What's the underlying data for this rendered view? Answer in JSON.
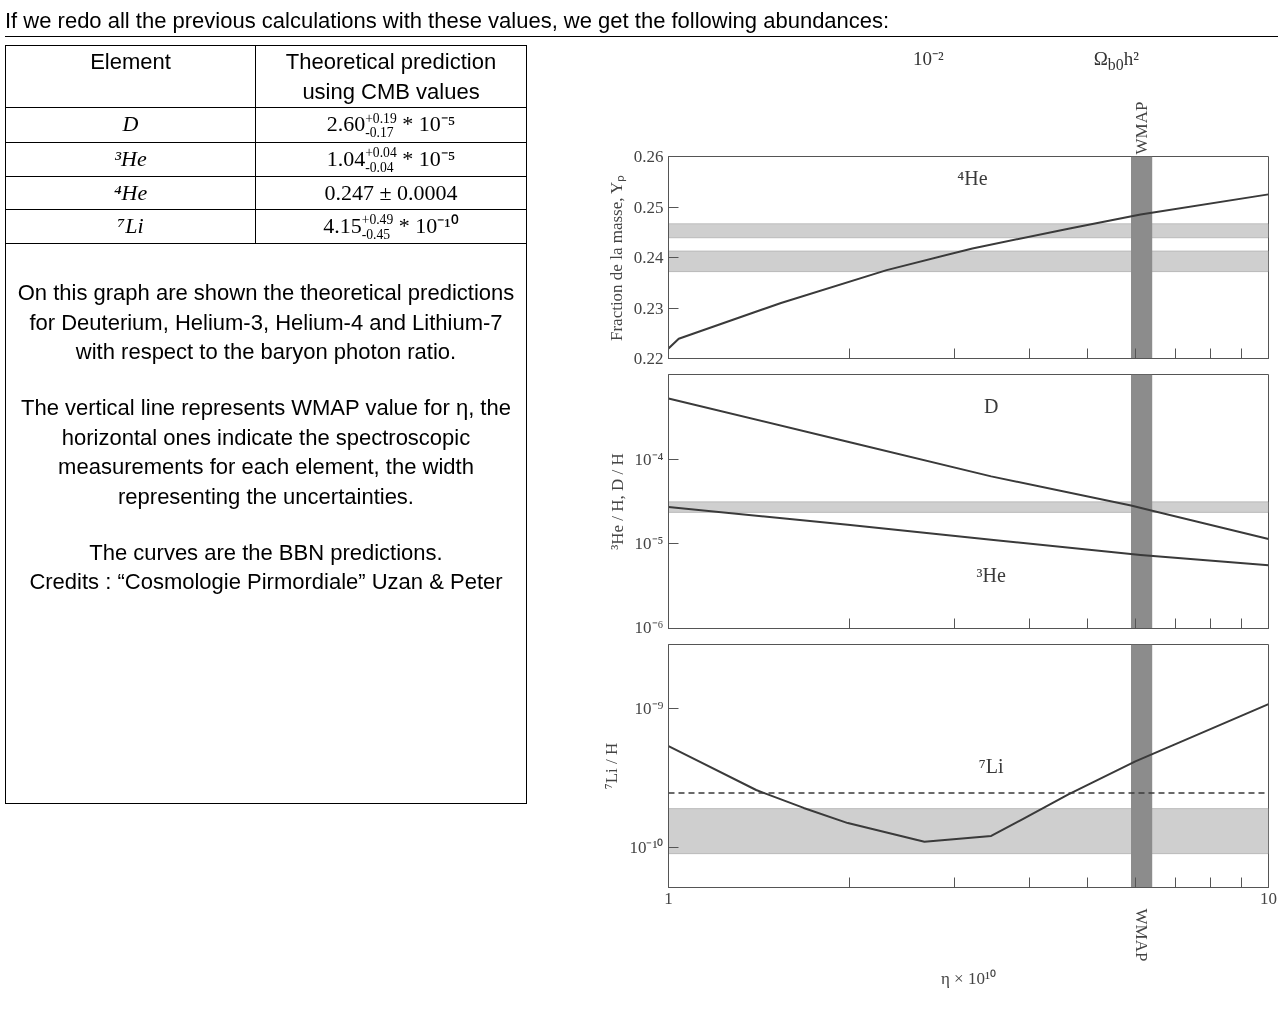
{
  "chart_data": [
    {
      "type": "other",
      "title": "If we redo all the previous calculations with these values, we get the following abundances:",
      "xlabel": "Element",
      "ylabel": "Theoretical prediction using CMB values",
      "categories": [
        "D",
        "³He",
        "⁴He",
        "⁷Li"
      ],
      "value_labels": [
        "2.60$^{+0.19}$$_{-0.17}$ * 10⁻⁵",
        "1.04$^{+0.04}$$_{-0.04}$ * 10⁻⁵",
        "0.247 ± 0.0004",
        "4.15$^{+0.49}$$_{-0.45}$ * 10⁻¹⁰"
      ],
      "annotations": [
        "On this graph are shown the theoretical predictions for Deuterium, Helium-3, Helium-4 and Lithium-7 with respect to the baryon photon ratio.",
        "The vertical line represents WMAP value for η, the horizontal ones indicate the spectroscopic measurements for each element, the width representing the uncertainties.",
        "The curves are the BBN predictions.\nCredits : “Cosmologie Pirmordiale” Uzan & Peter"
      ]
    },
    {
      "type": "line",
      "log": "x",
      "ylabel": "Fraction de la masse, Yₚ",
      "tick_labels": "y",
      "xlim": [
        1,
        10
      ],
      "xticks": [
        {
          "value": 1,
          "label": null
        },
        {
          "value": 2,
          "label": null
        },
        {
          "value": 3,
          "label": null
        },
        {
          "value": 4,
          "label": null
        },
        {
          "value": 5,
          "label": null
        },
        {
          "value": 6,
          "label": null
        },
        {
          "value": 7,
          "label": null
        },
        {
          "value": 8,
          "label": null
        },
        {
          "value": 9,
          "label": null
        },
        {
          "value": 10,
          "label": null
        }
      ],
      "ylim": [
        0.22,
        0.26
      ],
      "yticks": [
        0.22,
        0.23,
        0.24,
        0.25,
        0.26
      ],
      "series": [
        {
          "name": "⁴He",
          "color": "#3a3a3a",
          "x": [
            1,
            1.04,
            1.54,
            2.31,
            3.21,
            4.64,
            6.12,
            10
          ],
          "values": [
            0.222,
            0.2239,
            0.231,
            0.2375,
            0.2418,
            0.2457,
            0.2485,
            0.2525
          ]
        }
      ],
      "bands": [
        {
          "axis": "y",
          "from": 0.2439,
          "to": 0.2467,
          "color": "#cfcfcf"
        },
        {
          "axis": "y",
          "from": 0.2372,
          "to": 0.2413,
          "color": "#cfcfcf"
        },
        {
          "axis": "x",
          "from": 5.9,
          "to": 6.4,
          "label": "WMAP",
          "color": "#8c8c8c"
        }
      ],
      "annotations": [
        "10⁻²",
        "Ω$_{b0}$h²"
      ]
    },
    {
      "type": "line",
      "log": "xy",
      "ylabel": "³He / H, D / H",
      "tick_labels": "y",
      "xlim": [
        1,
        10
      ],
      "xticks": [
        {
          "value": 1,
          "label": null
        },
        {
          "value": 2,
          "label": null
        },
        {
          "value": 3,
          "label": null
        },
        {
          "value": 4,
          "label": null
        },
        {
          "value": 5,
          "label": null
        },
        {
          "value": 6,
          "label": null
        },
        {
          "value": 7,
          "label": null
        },
        {
          "value": 8,
          "label": null
        },
        {
          "value": 9,
          "label": null
        },
        {
          "value": 10,
          "label": null
        }
      ],
      "ylim": [
        1e-06,
        0.001
      ],
      "yticks": [
        {
          "value": 0.0001,
          "label": "10⁻⁴"
        },
        {
          "value": 1e-05,
          "label": "10⁻⁵"
        },
        {
          "value": 1e-06,
          "label": "10⁻⁶"
        }
      ],
      "series": [
        {
          "name": "D",
          "color": "#3a3a3a",
          "x": [
            1,
            1.99,
            3.45,
            5.9,
            10
          ],
          "values": [
            0.00052,
            0.000161,
            6.26e-05,
            2.83e-05,
            1.14e-05
          ]
        },
        {
          "name": "³He",
          "color": "#3a3a3a",
          "x": [
            1,
            1.99,
            3.45,
            6.12,
            10
          ],
          "values": [
            2.72e-05,
            1.68e-05,
            1.12e-05,
            7.4e-06,
            5.6e-06
          ]
        }
      ],
      "bands": [
        {
          "axis": "y",
          "from": 2.35e-05,
          "to": 3.14e-05,
          "color": "#cfcfcf"
        },
        {
          "axis": "x",
          "from": 5.9,
          "to": 6.4,
          "color": "#8c8c8c"
        }
      ]
    },
    {
      "type": "line",
      "log": "xy",
      "ylabel": "⁷Li / H",
      "xlabel": "η × 10¹⁰",
      "xlim": [
        1,
        10
      ],
      "xticks": [
        1,
        {
          "value": 2,
          "label": null
        },
        {
          "value": 3,
          "label": null
        },
        {
          "value": 4,
          "label": null
        },
        {
          "value": 5,
          "label": null
        },
        {
          "value": 6,
          "label": null
        },
        {
          "value": 7,
          "label": null
        },
        {
          "value": 8,
          "label": null
        },
        {
          "value": 9,
          "label": null
        },
        10
      ],
      "ylim": [
        5.2e-11,
        2.9e-09
      ],
      "yticks": [
        {
          "value": 1e-09,
          "label": "10⁻⁹"
        },
        {
          "value": 1e-10,
          "label": "10⁻¹⁰"
        }
      ],
      "series": [
        {
          "name": "⁷Li",
          "color": "#3a3a3a",
          "x": [
            1,
            1.4,
            1.68,
            1.99,
            2.67,
            3.45,
            3.86,
            4.64,
            6.0,
            10
          ],
          "values": [
            5.4e-10,
            2.61e-10,
            1.94e-10,
            1.51e-10,
            1.11e-10,
            1.22e-10,
            1.58e-10,
            2.43e-10,
            4.19e-10,
            1.08e-09
          ]
        }
      ],
      "bands": [
        {
          "axis": "y",
          "from": 9.1e-11,
          "to": 1.92e-10,
          "color": "#cfcfcf"
        },
        {
          "axis": "x",
          "from": 5.9,
          "to": 6.4,
          "label": "WMAP",
          "color": "#8c8c8c"
        }
      ],
      "ref_lines": [
        {
          "axis": "y",
          "value": 2.48e-10,
          "line_style": "dashed",
          "color": "#3a3a3a"
        }
      ]
    }
  ]
}
